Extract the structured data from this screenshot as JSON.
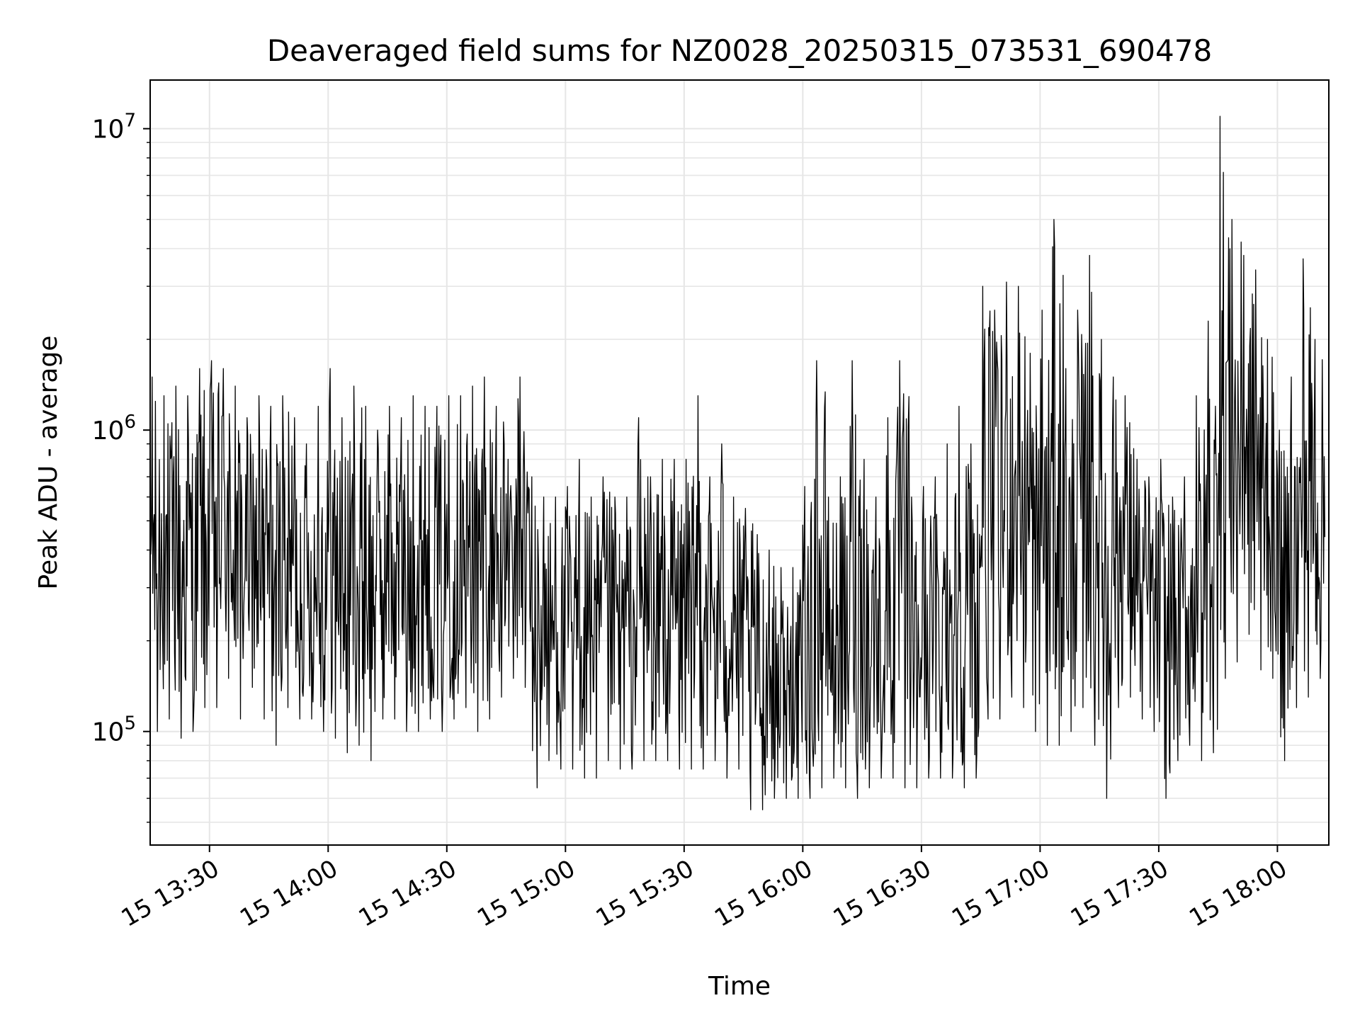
{
  "chart_data": {
    "type": "line",
    "title": "Deaveraged field sums for NZ0028_20250315_073531_690478",
    "xlabel": "Time",
    "ylabel": "Peak ADU - average",
    "y_scale": "log",
    "ylim": [
      42000,
      14500000
    ],
    "xlim": [
      "2025-03-15 13:15",
      "2025-03-15 18:13"
    ],
    "grid": true,
    "legend": "none",
    "line_color": "#000000",
    "grid_color": "#e6e6e6",
    "x_ticks": [
      {
        "t": "2025-03-15 13:30",
        "label": "15 13:30"
      },
      {
        "t": "2025-03-15 14:00",
        "label": "15 14:00"
      },
      {
        "t": "2025-03-15 14:30",
        "label": "15 14:30"
      },
      {
        "t": "2025-03-15 15:00",
        "label": "15 15:00"
      },
      {
        "t": "2025-03-15 15:30",
        "label": "15 15:30"
      },
      {
        "t": "2025-03-15 16:00",
        "label": "15 16:00"
      },
      {
        "t": "2025-03-15 16:30",
        "label": "15 16:30"
      },
      {
        "t": "2025-03-15 17:00",
        "label": "15 17:00"
      },
      {
        "t": "2025-03-15 17:30",
        "label": "15 17:30"
      },
      {
        "t": "2025-03-15 18:00",
        "label": "15 18:00"
      }
    ],
    "y_ticks": [
      {
        "value": 100000,
        "base": "10",
        "exp": "5"
      },
      {
        "value": 1000000,
        "base": "10",
        "exp": "6"
      },
      {
        "value": 10000000,
        "base": "10",
        "exp": "7"
      }
    ],
    "series": [
      {
        "x": [
          "2025-03-15 13:15",
          "2025-03-15 13:18",
          "2025-03-15 13:21",
          "2025-03-15 13:24",
          "2025-03-15 13:27",
          "2025-03-15 13:30",
          "2025-03-15 13:33",
          "2025-03-15 13:36",
          "2025-03-15 13:39",
          "2025-03-15 13:42",
          "2025-03-15 13:45",
          "2025-03-15 13:48",
          "2025-03-15 13:51",
          "2025-03-15 13:54",
          "2025-03-15 13:57",
          "2025-03-15 14:00",
          "2025-03-15 14:03",
          "2025-03-15 14:06",
          "2025-03-15 14:09",
          "2025-03-15 14:12",
          "2025-03-15 14:15",
          "2025-03-15 14:18",
          "2025-03-15 14:21",
          "2025-03-15 14:24",
          "2025-03-15 14:27",
          "2025-03-15 14:30",
          "2025-03-15 14:33",
          "2025-03-15 14:36",
          "2025-03-15 14:39",
          "2025-03-15 14:42",
          "2025-03-15 14:45",
          "2025-03-15 14:48",
          "2025-03-15 14:51",
          "2025-03-15 14:54",
          "2025-03-15 14:57",
          "2025-03-15 15:00",
          "2025-03-15 15:03",
          "2025-03-15 15:06",
          "2025-03-15 15:09",
          "2025-03-15 15:12",
          "2025-03-15 15:15",
          "2025-03-15 15:18",
          "2025-03-15 15:21",
          "2025-03-15 15:24",
          "2025-03-15 15:27",
          "2025-03-15 15:30",
          "2025-03-15 15:33",
          "2025-03-15 15:36",
          "2025-03-15 15:39",
          "2025-03-15 15:42",
          "2025-03-15 15:45",
          "2025-03-15 15:48",
          "2025-03-15 15:51",
          "2025-03-15 15:54",
          "2025-03-15 15:57",
          "2025-03-15 16:00",
          "2025-03-15 16:03",
          "2025-03-15 16:06",
          "2025-03-15 16:09",
          "2025-03-15 16:12",
          "2025-03-15 16:15",
          "2025-03-15 16:18",
          "2025-03-15 16:21",
          "2025-03-15 16:24",
          "2025-03-15 16:27",
          "2025-03-15 16:30",
          "2025-03-15 16:33",
          "2025-03-15 16:36",
          "2025-03-15 16:39",
          "2025-03-15 16:42",
          "2025-03-15 16:45",
          "2025-03-15 16:48",
          "2025-03-15 16:51",
          "2025-03-15 16:54",
          "2025-03-15 16:57",
          "2025-03-15 17:00",
          "2025-03-15 17:03",
          "2025-03-15 17:06",
          "2025-03-15 17:09",
          "2025-03-15 17:12",
          "2025-03-15 17:15",
          "2025-03-15 17:18",
          "2025-03-15 17:21",
          "2025-03-15 17:24",
          "2025-03-15 17:27",
          "2025-03-15 17:30",
          "2025-03-15 17:33",
          "2025-03-15 17:36",
          "2025-03-15 17:39",
          "2025-03-15 17:42",
          "2025-03-15 17:45",
          "2025-03-15 17:48",
          "2025-03-15 17:51",
          "2025-03-15 17:54",
          "2025-03-15 17:57",
          "2025-03-15 18:00",
          "2025-03-15 18:03",
          "2025-03-15 18:06",
          "2025-03-15 18:09",
          "2025-03-15 18:12"
        ],
        "min": [
          100000,
          110000,
          95000,
          100000,
          120000,
          120000,
          150000,
          110000,
          140000,
          110000,
          90000,
          120000,
          110000,
          110000,
          100000,
          95000,
          85000,
          90000,
          80000,
          110000,
          110000,
          100000,
          100000,
          110000,
          100000,
          110000,
          120000,
          100000,
          110000,
          130000,
          150000,
          140000,
          65000,
          80000,
          75000,
          75000,
          70000,
          70000,
          80000,
          75000,
          75000,
          80000,
          80000,
          80000,
          75000,
          75000,
          75000,
          80000,
          70000,
          75000,
          55000,
          55000,
          60000,
          60000,
          60000,
          60000,
          65000,
          70000,
          65000,
          60000,
          65000,
          70000,
          70000,
          65000,
          65000,
          70000,
          70000,
          70000,
          65000,
          70000,
          110000,
          110000,
          130000,
          120000,
          100000,
          90000,
          90000,
          100000,
          120000,
          90000,
          60000,
          120000,
          130000,
          110000,
          100000,
          60000,
          80000,
          90000,
          80000,
          85000,
          150000,
          170000,
          210000,
          160000,
          150000,
          80000,
          120000,
          130000,
          150000,
          150000
        ],
        "max": [
          1500000,
          1300000,
          1400000,
          1300000,
          1600000,
          1700000,
          1600000,
          1400000,
          1100000,
          1300000,
          1200000,
          1300000,
          1100000,
          900000,
          1200000,
          1600000,
          1100000,
          1400000,
          1200000,
          1000000,
          1200000,
          1100000,
          1300000,
          1200000,
          1200000,
          1300000,
          1300000,
          1400000,
          1500000,
          1200000,
          800000,
          1500000,
          700000,
          600000,
          600000,
          650000,
          800000,
          600000,
          700000,
          600000,
          600000,
          1100000,
          700000,
          800000,
          800000,
          800000,
          1300000,
          700000,
          900000,
          600000,
          550000,
          450000,
          400000,
          350000,
          350000,
          650000,
          1700000,
          600000,
          700000,
          1700000,
          800000,
          600000,
          1100000,
          1700000,
          600000,
          650000,
          700000,
          900000,
          1200000,
          900000,
          3000000,
          2500000,
          3100000,
          3000000,
          1800000,
          2500000,
          5000000,
          1600000,
          2500000,
          3800000,
          2000000,
          1500000,
          1300000,
          800000,
          700000,
          800000,
          600000,
          700000,
          1300000,
          2300000,
          11000000,
          5000000,
          3800000,
          3400000,
          2000000,
          1000000,
          1500000,
          3700000,
          2000000,
          1300000
        ]
      }
    ]
  }
}
